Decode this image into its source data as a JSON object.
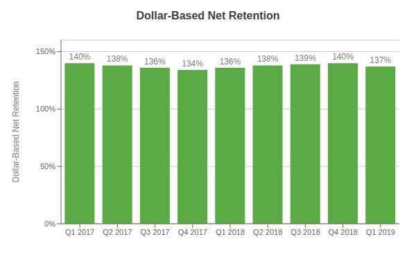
{
  "chart_data": {
    "type": "bar",
    "title": "Dollar-Based Net Retention",
    "categories": [
      "Q1 2017",
      "Q2 2017",
      "Q3 2017",
      "Q4 2017",
      "Q1 2018",
      "Q2 2018",
      "Q3 2018",
      "Q4 2018",
      "Q1 2019"
    ],
    "values": [
      1.4,
      1.38,
      1.36,
      1.34,
      1.36,
      1.38,
      1.39,
      1.4,
      1.37
    ],
    "value_labels": [
      "140%",
      "138%",
      "136%",
      "134%",
      "136%",
      "138%",
      "139%",
      "140%",
      "137%"
    ],
    "data_labels": true,
    "color": "#5aab46",
    "ylabel": "Dollar-Based Net Retention",
    "ylim": [
      0,
      1.6
    ],
    "yticks": [
      {
        "value": 0,
        "label": "0%"
      },
      {
        "value": 0.5,
        "label": "50%"
      },
      {
        "value": 1.0,
        "label": "100%"
      },
      {
        "value": 1.5,
        "label": "150%"
      }
    ],
    "grid": true
  }
}
